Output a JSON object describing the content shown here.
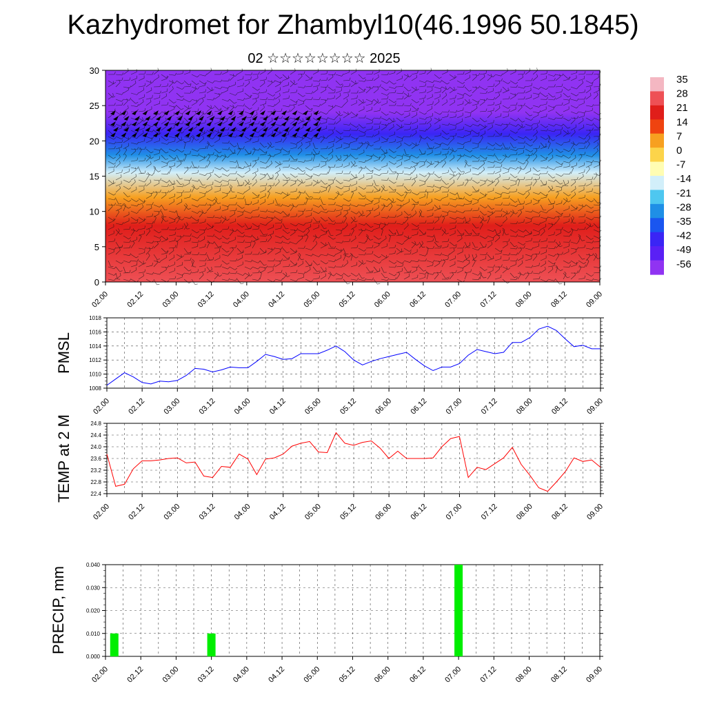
{
  "title": "Kazhydromet for Zhambyl10(46.1996 50.1845)",
  "subtitle": "02 ☆☆☆☆☆☆☆☆ 2025",
  "time_ticks": [
    "02.00",
    "02.12",
    "03.00",
    "03.12",
    "04.00",
    "04.12",
    "05.00",
    "05.12",
    "06.00",
    "06.12",
    "07.00",
    "07.12",
    "08.00",
    "08.12",
    "09.00"
  ],
  "colorbar": {
    "labels": [
      "35",
      "28",
      "21",
      "14",
      "7",
      "0",
      "-7",
      "-14",
      "-21",
      "-28",
      "-35",
      "-42",
      "-49",
      "-56"
    ],
    "colors": [
      "#f4b7c2",
      "#ee5055",
      "#e01e1a",
      "#ef4310",
      "#f7a020",
      "#fcd44a",
      "#fffdb3",
      "#d2effa",
      "#4ec7f0",
      "#1f8fe6",
      "#1a56f0",
      "#3a25f5",
      "#5a20f5",
      "#9033f2"
    ]
  },
  "chart_data": [
    {
      "type": "heatmap",
      "description": "vertical cross-section of temperature with wind barbs",
      "x": [
        "02.00",
        "02.12",
        "03.00",
        "03.12",
        "04.00",
        "04.12",
        "05.00",
        "05.12",
        "06.00",
        "06.12",
        "07.00",
        "07.12",
        "08.00",
        "08.12",
        "09.00"
      ],
      "ylim": [
        0,
        30
      ],
      "yticks": [
        0,
        5,
        10,
        15,
        20,
        25,
        30
      ],
      "profile": [
        {
          "y": 0,
          "value": 33
        },
        {
          "y": 8,
          "value": 22
        },
        {
          "y": 12,
          "value": 8
        },
        {
          "y": 15.5,
          "value": -8
        },
        {
          "y": 18,
          "value": -22
        },
        {
          "y": 21,
          "value": -40
        },
        {
          "y": 24,
          "value": -52
        },
        {
          "y": 26,
          "value": -58
        },
        {
          "y": 30,
          "value": -60
        }
      ]
    },
    {
      "type": "line",
      "ylabel": "PMSL",
      "ylim": [
        1008,
        1018
      ],
      "yticks": [
        1008,
        1010,
        1012,
        1014,
        1016,
        1018
      ],
      "color": "#0000ff",
      "x": [
        "02.00",
        "02.03",
        "02.06",
        "02.09",
        "02.12",
        "02.15",
        "02.18",
        "02.21",
        "03.00",
        "03.03",
        "03.06",
        "03.09",
        "03.12",
        "03.15",
        "03.18",
        "03.21",
        "04.00",
        "04.03",
        "04.06",
        "04.09",
        "04.12",
        "04.15",
        "04.18",
        "04.21",
        "05.00",
        "05.03",
        "05.06",
        "05.09",
        "05.12",
        "05.15",
        "05.18",
        "05.21",
        "06.00",
        "06.03",
        "06.06",
        "06.09",
        "06.12",
        "06.15",
        "06.18",
        "06.21",
        "07.00",
        "07.03",
        "07.06",
        "07.09",
        "07.12",
        "07.15",
        "07.18",
        "07.21",
        "08.00",
        "08.03",
        "08.06",
        "08.09",
        "08.12",
        "08.15",
        "08.18",
        "08.21",
        "09.00"
      ],
      "values": [
        1008.4,
        1009.3,
        1010.2,
        1009.6,
        1008.8,
        1008.6,
        1009.0,
        1008.9,
        1009.1,
        1009.8,
        1010.8,
        1010.7,
        1010.3,
        1010.6,
        1011.0,
        1010.9,
        1010.9,
        1011.8,
        1012.8,
        1012.5,
        1012.1,
        1012.2,
        1012.9,
        1012.9,
        1012.9,
        1013.4,
        1014.0,
        1013.2,
        1012.0,
        1011.3,
        1011.8,
        1012.2,
        1012.5,
        1012.8,
        1013.1,
        1012.1,
        1011.2,
        1010.5,
        1011.0,
        1011.0,
        1011.5,
        1012.7,
        1013.5,
        1013.2,
        1012.9,
        1013.1,
        1014.5,
        1014.5,
        1015.2,
        1016.4,
        1016.8,
        1016.2,
        1015.0,
        1013.9,
        1014.1,
        1013.6,
        1013.6
      ]
    },
    {
      "type": "line",
      "ylabel": "TEMP at 2 M",
      "ylim": [
        22.4,
        24.8
      ],
      "yticks": [
        22.4,
        22.8,
        23.2,
        23.6,
        24.0,
        24.4,
        24.8
      ],
      "color": "#ff0000",
      "x": [
        "02.00",
        "02.03",
        "02.06",
        "02.09",
        "02.12",
        "02.15",
        "02.18",
        "02.21",
        "03.00",
        "03.03",
        "03.06",
        "03.09",
        "03.12",
        "03.15",
        "03.18",
        "03.21",
        "04.00",
        "04.03",
        "04.06",
        "04.09",
        "04.12",
        "04.15",
        "04.18",
        "04.21",
        "05.00",
        "05.03",
        "05.06",
        "05.09",
        "05.12",
        "05.15",
        "05.18",
        "05.21",
        "06.00",
        "06.03",
        "06.06",
        "06.09",
        "06.12",
        "06.15",
        "06.18",
        "06.21",
        "07.00",
        "07.03",
        "07.06",
        "07.09",
        "07.12",
        "07.15",
        "07.18",
        "07.21",
        "08.00",
        "08.03",
        "08.06",
        "08.09",
        "08.12",
        "08.15",
        "08.18",
        "08.21",
        "09.00"
      ],
      "values": [
        23.75,
        22.65,
        22.72,
        23.25,
        23.52,
        23.52,
        23.55,
        23.6,
        23.62,
        23.45,
        23.48,
        23.0,
        22.95,
        23.33,
        23.3,
        23.75,
        23.58,
        23.05,
        23.58,
        23.62,
        23.75,
        24.02,
        24.12,
        24.18,
        23.82,
        23.8,
        24.48,
        24.12,
        24.05,
        24.15,
        24.2,
        23.95,
        23.6,
        23.85,
        23.6,
        23.6,
        23.6,
        23.62,
        24.0,
        24.28,
        24.35,
        22.95,
        23.3,
        23.22,
        23.42,
        23.62,
        23.98,
        23.4,
        23.02,
        22.6,
        22.48,
        22.8,
        23.15,
        23.62,
        23.5,
        23.55,
        23.3
      ]
    },
    {
      "type": "bar",
      "ylabel": "PRECIP, mm",
      "ylim": [
        0,
        0.04
      ],
      "yticks": [
        "0.000",
        "0.010",
        "0.020",
        "0.030",
        "0.040"
      ],
      "color": "#00ee00",
      "x": [
        "02.03",
        "03.12",
        "07.00"
      ],
      "values": [
        0.01,
        0.01,
        0.04
      ]
    }
  ]
}
